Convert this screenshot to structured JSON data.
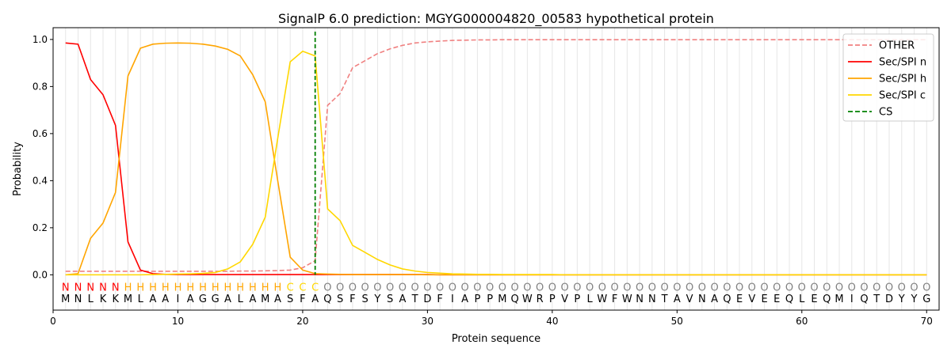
{
  "chart_data": {
    "type": "line",
    "title": "SignalP 6.0 prediction: MGYG000004820_00583 hypothetical protein",
    "xlabel": "Protein sequence",
    "ylabel": "Probability",
    "xlim": [
      0,
      71
    ],
    "ylim": [
      -0.15,
      1.05
    ],
    "x_ticks": [
      0,
      10,
      20,
      30,
      40,
      50,
      60,
      70
    ],
    "y_ticks": [
      0.0,
      0.2,
      0.4,
      0.6,
      0.8,
      1.0
    ],
    "x_tick_labels": [
      "0",
      "10",
      "20",
      "30",
      "40",
      "50",
      "60",
      "70"
    ],
    "y_tick_labels": [
      "0.0",
      "0.2",
      "0.4",
      "0.6",
      "0.8",
      "1.0"
    ],
    "grid": "vertical lines at each residue",
    "legend_position": "top-right",
    "sequence": [
      "M",
      "N",
      "L",
      "K",
      "K",
      "M",
      "L",
      "A",
      "A",
      "I",
      "A",
      "G",
      "G",
      "A",
      "L",
      "A",
      "M",
      "A",
      "S",
      "F",
      "A",
      "Q",
      "S",
      "F",
      "S",
      "Y",
      "S",
      "A",
      "T",
      "D",
      "F",
      "I",
      "A",
      "P",
      "P",
      "M",
      "Q",
      "W",
      "R",
      "P",
      "V",
      "P",
      "L",
      "W",
      "F",
      "W",
      "N",
      "N",
      "T",
      "A",
      "V",
      "N",
      "A",
      "Q",
      "E",
      "V",
      "E",
      "E",
      "Q",
      "L",
      "E",
      "Q",
      "M",
      "I",
      "Q",
      "T",
      "D",
      "Y",
      "Y",
      "G"
    ],
    "annotation": [
      "N",
      "N",
      "N",
      "N",
      "N",
      "H",
      "H",
      "H",
      "H",
      "H",
      "H",
      "H",
      "H",
      "H",
      "H",
      "H",
      "H",
      "H",
      "C",
      "C",
      "C",
      "O",
      "O",
      "O",
      "O",
      "O",
      "O",
      "O",
      "O",
      "O",
      "O",
      "O",
      "O",
      "O",
      "O",
      "O",
      "O",
      "O",
      "O",
      "O",
      "O",
      "O",
      "O",
      "O",
      "O",
      "O",
      "O",
      "O",
      "O",
      "O",
      "O",
      "O",
      "O",
      "O",
      "O",
      "O",
      "O",
      "O",
      "O",
      "O",
      "O",
      "O",
      "O",
      "O",
      "O",
      "O",
      "O",
      "O",
      "O",
      "O"
    ],
    "annotation_colors": {
      "N": "#ff0000",
      "H": "#ffa500",
      "C": "#ffd700",
      "O": "#808080"
    },
    "cs_position": 21,
    "series": [
      {
        "name": "OTHER",
        "color": "#f08080",
        "dash": "dashed",
        "values": [
          0.015,
          0.015,
          0.015,
          0.015,
          0.015,
          0.015,
          0.015,
          0.015,
          0.015,
          0.015,
          0.015,
          0.015,
          0.015,
          0.015,
          0.016,
          0.016,
          0.017,
          0.018,
          0.02,
          0.03,
          0.06,
          0.72,
          0.77,
          0.88,
          0.91,
          0.94,
          0.96,
          0.975,
          0.985,
          0.99,
          0.993,
          0.996,
          0.997,
          0.998,
          0.998,
          0.999,
          0.999,
          0.999,
          0.999,
          0.999,
          0.999,
          0.999,
          0.999,
          0.999,
          0.999,
          0.999,
          0.999,
          0.999,
          0.999,
          0.999,
          0.999,
          0.999,
          0.999,
          0.999,
          0.999,
          0.999,
          0.999,
          0.999,
          0.999,
          0.999,
          0.999,
          0.999,
          0.999,
          0.999,
          0.999,
          0.999,
          0.999,
          0.999,
          0.999,
          0.999
        ]
      },
      {
        "name": "Sec/SPI n",
        "color": "#ff0000",
        "dash": "solid",
        "values": [
          0.985,
          0.98,
          0.83,
          0.765,
          0.635,
          0.14,
          0.02,
          0.005,
          0.002,
          0.001,
          0.001,
          0.001,
          0.001,
          0.001,
          0.001,
          0.001,
          0.001,
          0.001,
          0.001,
          0.001,
          0.001,
          0.001,
          0.001,
          0.001,
          0.001,
          0.001,
          0.001,
          0.001,
          0.001,
          0.001,
          0,
          0,
          0,
          0,
          0,
          0,
          0,
          0,
          0,
          0,
          0,
          0,
          0,
          0,
          0,
          0,
          0,
          0,
          0,
          0,
          0,
          0,
          0,
          0,
          0,
          0,
          0,
          0,
          0,
          0,
          0,
          0,
          0,
          0,
          0,
          0,
          0,
          0,
          0,
          0
        ]
      },
      {
        "name": "Sec/SPI h",
        "color": "#ffa500",
        "dash": "solid",
        "values": [
          0.0,
          0.005,
          0.155,
          0.22,
          0.35,
          0.845,
          0.963,
          0.98,
          0.984,
          0.985,
          0.984,
          0.98,
          0.972,
          0.958,
          0.93,
          0.85,
          0.735,
          0.4,
          0.075,
          0.02,
          0.005,
          0.003,
          0.002,
          0.001,
          0.001,
          0.001,
          0.001,
          0.001,
          0.001,
          0,
          0,
          0,
          0,
          0,
          0,
          0,
          0,
          0,
          0,
          0,
          0,
          0,
          0,
          0,
          0,
          0,
          0,
          0,
          0,
          0,
          0,
          0,
          0,
          0,
          0,
          0,
          0,
          0,
          0,
          0,
          0,
          0,
          0,
          0,
          0,
          0,
          0,
          0,
          0,
          0
        ]
      },
      {
        "name": "Sec/SPI c",
        "color": "#ffd700",
        "dash": "solid",
        "values": [
          0.0,
          0.0,
          0.0,
          0.0,
          0.0,
          0.0,
          0.0,
          0.001,
          0.002,
          0.003,
          0.004,
          0.006,
          0.01,
          0.025,
          0.055,
          0.13,
          0.245,
          0.58,
          0.905,
          0.95,
          0.93,
          0.28,
          0.23,
          0.125,
          0.095,
          0.065,
          0.042,
          0.025,
          0.016,
          0.01,
          0.007,
          0.004,
          0.003,
          0.002,
          0.002,
          0.001,
          0.001,
          0.001,
          0.001,
          0.001,
          0,
          0,
          0,
          0,
          0,
          0,
          0,
          0,
          0,
          0,
          0,
          0,
          0,
          0,
          0,
          0,
          0,
          0,
          0,
          0,
          0,
          0,
          0,
          0,
          0,
          0,
          0,
          0,
          0,
          0
        ]
      },
      {
        "name": "CS",
        "color": "#008000",
        "dash": "dashed",
        "values": []
      }
    ]
  }
}
